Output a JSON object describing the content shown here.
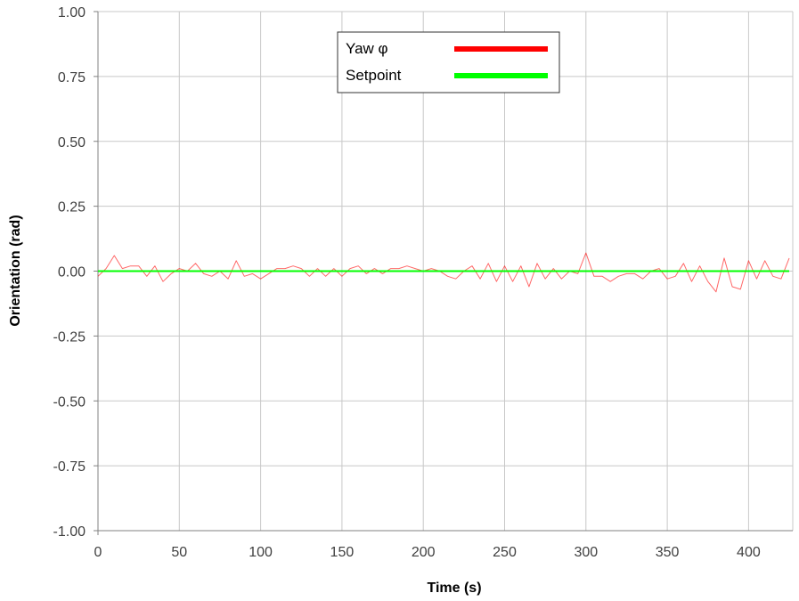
{
  "chart_data": {
    "type": "line",
    "xlabel": "Time (s)",
    "ylabel": "Orientation (rad)",
    "xlim": [
      0,
      425
    ],
    "ylim": [
      -1.0,
      1.0
    ],
    "x_ticks": [
      "0",
      "50",
      "100",
      "150",
      "200",
      "250",
      "300",
      "350",
      "400"
    ],
    "y_ticks": [
      "1.00",
      "0.75",
      "0.50",
      "0.25",
      "0.00",
      "-0.25",
      "-0.50",
      "-0.75",
      "-1.00"
    ],
    "grid": true,
    "legend_position": "top-center",
    "series": [
      {
        "name": "Yaw φ",
        "color": "#ff0000",
        "x": [
          0,
          5,
          10,
          15,
          20,
          25,
          30,
          35,
          40,
          45,
          50,
          55,
          60,
          65,
          70,
          75,
          80,
          85,
          90,
          95,
          100,
          105,
          110,
          115,
          120,
          125,
          130,
          135,
          140,
          145,
          150,
          155,
          160,
          165,
          170,
          175,
          180,
          185,
          190,
          195,
          200,
          205,
          210,
          215,
          220,
          225,
          230,
          235,
          240,
          245,
          250,
          255,
          260,
          265,
          270,
          275,
          280,
          285,
          290,
          295,
          300,
          305,
          310,
          315,
          320,
          325,
          330,
          335,
          340,
          345,
          350,
          355,
          360,
          365,
          370,
          375,
          380,
          385,
          390,
          395,
          400,
          405,
          410,
          415,
          420,
          425
        ],
        "y": [
          -0.02,
          0.01,
          0.06,
          0.01,
          0.02,
          0.02,
          -0.02,
          0.02,
          -0.04,
          -0.01,
          0.01,
          0.0,
          0.03,
          -0.01,
          -0.02,
          0.0,
          -0.03,
          0.04,
          -0.02,
          -0.01,
          -0.03,
          -0.01,
          0.01,
          0.01,
          0.02,
          0.01,
          -0.02,
          0.01,
          -0.02,
          0.01,
          -0.02,
          0.01,
          0.02,
          -0.01,
          0.01,
          -0.01,
          0.01,
          0.01,
          0.02,
          0.01,
          0.0,
          0.01,
          0.0,
          -0.02,
          -0.03,
          0.0,
          0.02,
          -0.03,
          0.03,
          -0.04,
          0.02,
          -0.04,
          0.02,
          -0.06,
          0.03,
          -0.03,
          0.01,
          -0.03,
          0.0,
          -0.01,
          0.07,
          -0.02,
          -0.02,
          -0.04,
          -0.02,
          -0.01,
          -0.01,
          -0.03,
          0.0,
          0.01,
          -0.03,
          -0.02,
          0.03,
          -0.04,
          0.02,
          -0.04,
          -0.08,
          0.05,
          -0.06,
          -0.07,
          0.04,
          -0.03,
          0.04,
          -0.02,
          -0.03,
          0.05
        ]
      },
      {
        "name": "Setpoint",
        "color": "#00ff00",
        "x": [
          0,
          425
        ],
        "y": [
          0.0,
          0.0
        ]
      }
    ]
  }
}
